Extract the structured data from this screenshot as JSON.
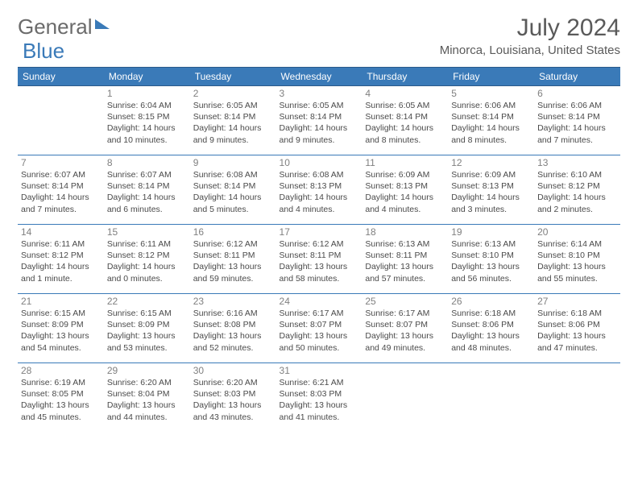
{
  "brand": {
    "part1": "General",
    "part2": "Blue"
  },
  "title": "July 2024",
  "location": "Minorca, Louisiana, United States",
  "header_bg": "#3a7ab8",
  "days": [
    "Sunday",
    "Monday",
    "Tuesday",
    "Wednesday",
    "Thursday",
    "Friday",
    "Saturday"
  ],
  "weeks": [
    [
      null,
      {
        "n": "1",
        "sr": "6:04 AM",
        "ss": "8:15 PM",
        "dl": "14 hours and 10 minutes."
      },
      {
        "n": "2",
        "sr": "6:05 AM",
        "ss": "8:14 PM",
        "dl": "14 hours and 9 minutes."
      },
      {
        "n": "3",
        "sr": "6:05 AM",
        "ss": "8:14 PM",
        "dl": "14 hours and 9 minutes."
      },
      {
        "n": "4",
        "sr": "6:05 AM",
        "ss": "8:14 PM",
        "dl": "14 hours and 8 minutes."
      },
      {
        "n": "5",
        "sr": "6:06 AM",
        "ss": "8:14 PM",
        "dl": "14 hours and 8 minutes."
      },
      {
        "n": "6",
        "sr": "6:06 AM",
        "ss": "8:14 PM",
        "dl": "14 hours and 7 minutes."
      }
    ],
    [
      {
        "n": "7",
        "sr": "6:07 AM",
        "ss": "8:14 PM",
        "dl": "14 hours and 7 minutes."
      },
      {
        "n": "8",
        "sr": "6:07 AM",
        "ss": "8:14 PM",
        "dl": "14 hours and 6 minutes."
      },
      {
        "n": "9",
        "sr": "6:08 AM",
        "ss": "8:14 PM",
        "dl": "14 hours and 5 minutes."
      },
      {
        "n": "10",
        "sr": "6:08 AM",
        "ss": "8:13 PM",
        "dl": "14 hours and 4 minutes."
      },
      {
        "n": "11",
        "sr": "6:09 AM",
        "ss": "8:13 PM",
        "dl": "14 hours and 4 minutes."
      },
      {
        "n": "12",
        "sr": "6:09 AM",
        "ss": "8:13 PM",
        "dl": "14 hours and 3 minutes."
      },
      {
        "n": "13",
        "sr": "6:10 AM",
        "ss": "8:12 PM",
        "dl": "14 hours and 2 minutes."
      }
    ],
    [
      {
        "n": "14",
        "sr": "6:11 AM",
        "ss": "8:12 PM",
        "dl": "14 hours and 1 minute."
      },
      {
        "n": "15",
        "sr": "6:11 AM",
        "ss": "8:12 PM",
        "dl": "14 hours and 0 minutes."
      },
      {
        "n": "16",
        "sr": "6:12 AM",
        "ss": "8:11 PM",
        "dl": "13 hours and 59 minutes."
      },
      {
        "n": "17",
        "sr": "6:12 AM",
        "ss": "8:11 PM",
        "dl": "13 hours and 58 minutes."
      },
      {
        "n": "18",
        "sr": "6:13 AM",
        "ss": "8:11 PM",
        "dl": "13 hours and 57 minutes."
      },
      {
        "n": "19",
        "sr": "6:13 AM",
        "ss": "8:10 PM",
        "dl": "13 hours and 56 minutes."
      },
      {
        "n": "20",
        "sr": "6:14 AM",
        "ss": "8:10 PM",
        "dl": "13 hours and 55 minutes."
      }
    ],
    [
      {
        "n": "21",
        "sr": "6:15 AM",
        "ss": "8:09 PM",
        "dl": "13 hours and 54 minutes."
      },
      {
        "n": "22",
        "sr": "6:15 AM",
        "ss": "8:09 PM",
        "dl": "13 hours and 53 minutes."
      },
      {
        "n": "23",
        "sr": "6:16 AM",
        "ss": "8:08 PM",
        "dl": "13 hours and 52 minutes."
      },
      {
        "n": "24",
        "sr": "6:17 AM",
        "ss": "8:07 PM",
        "dl": "13 hours and 50 minutes."
      },
      {
        "n": "25",
        "sr": "6:17 AM",
        "ss": "8:07 PM",
        "dl": "13 hours and 49 minutes."
      },
      {
        "n": "26",
        "sr": "6:18 AM",
        "ss": "8:06 PM",
        "dl": "13 hours and 48 minutes."
      },
      {
        "n": "27",
        "sr": "6:18 AM",
        "ss": "8:06 PM",
        "dl": "13 hours and 47 minutes."
      }
    ],
    [
      {
        "n": "28",
        "sr": "6:19 AM",
        "ss": "8:05 PM",
        "dl": "13 hours and 45 minutes."
      },
      {
        "n": "29",
        "sr": "6:20 AM",
        "ss": "8:04 PM",
        "dl": "13 hours and 44 minutes."
      },
      {
        "n": "30",
        "sr": "6:20 AM",
        "ss": "8:03 PM",
        "dl": "13 hours and 43 minutes."
      },
      {
        "n": "31",
        "sr": "6:21 AM",
        "ss": "8:03 PM",
        "dl": "13 hours and 41 minutes."
      },
      null,
      null,
      null
    ]
  ],
  "labels": {
    "sunrise": "Sunrise: ",
    "sunset": "Sunset: ",
    "daylight": "Daylight: "
  }
}
